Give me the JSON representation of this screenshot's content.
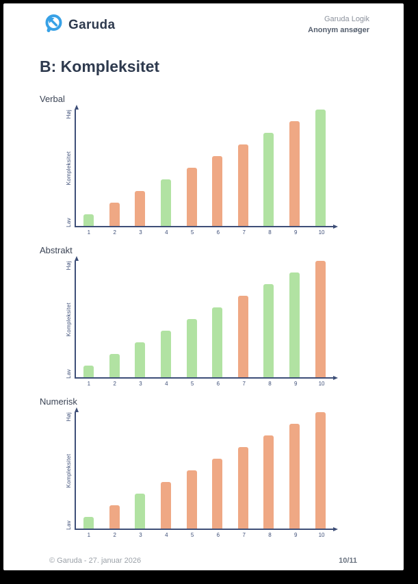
{
  "header": {
    "logo_text": "Garuda",
    "product": "Garuda Logik",
    "candidate": "Anonym ansøger"
  },
  "title": "B: Kompleksitet",
  "footer": {
    "copyright": "© Garuda - 27. januar 2026",
    "page_number": "10/11"
  },
  "colors": {
    "green": "#b1e2a2",
    "orange": "#efa884",
    "axis": "#3d4e77",
    "brand_blue": "#38a1e6",
    "heading_text": "#2e3a4e"
  },
  "chart_data": [
    {
      "type": "bar",
      "title": "Verbal",
      "categories": [
        "1",
        "2",
        "3",
        "4",
        "5",
        "6",
        "7",
        "8",
        "9",
        "10"
      ],
      "values": [
        1,
        2,
        3,
        4,
        5,
        6,
        7,
        8,
        9,
        10
      ],
      "bar_colors": [
        "green",
        "orange",
        "orange",
        "green",
        "orange",
        "orange",
        "orange",
        "green",
        "orange",
        "green"
      ],
      "xlabel": "",
      "ylabel": "Kompleksitet",
      "y_axis_top_label": "Høj",
      "y_axis_bottom_label": "Lav",
      "ylim": [
        0,
        10
      ],
      "grid": false,
      "legend": false
    },
    {
      "type": "bar",
      "title": "Abstrakt",
      "categories": [
        "1",
        "2",
        "3",
        "4",
        "5",
        "6",
        "7",
        "8",
        "9",
        "10"
      ],
      "values": [
        1,
        2,
        3,
        4,
        5,
        6,
        7,
        8,
        9,
        10
      ],
      "bar_colors": [
        "green",
        "green",
        "green",
        "green",
        "green",
        "green",
        "orange",
        "green",
        "green",
        "orange"
      ],
      "xlabel": "",
      "ylabel": "Kompleksitet",
      "y_axis_top_label": "Høj",
      "y_axis_bottom_label": "Lav",
      "ylim": [
        0,
        10
      ],
      "grid": false,
      "legend": false
    },
    {
      "type": "bar",
      "title": "Numerisk",
      "categories": [
        "1",
        "2",
        "3",
        "4",
        "5",
        "6",
        "7",
        "8",
        "9",
        "10"
      ],
      "values": [
        1,
        2,
        3,
        4,
        5,
        6,
        7,
        8,
        9,
        10
      ],
      "bar_colors": [
        "green",
        "orange",
        "green",
        "orange",
        "orange",
        "orange",
        "orange",
        "orange",
        "orange",
        "orange"
      ],
      "xlabel": "",
      "ylabel": "Kompleksitet",
      "y_axis_top_label": "Høj",
      "y_axis_bottom_label": "Lav",
      "ylim": [
        0,
        10
      ],
      "grid": false,
      "legend": false
    }
  ]
}
